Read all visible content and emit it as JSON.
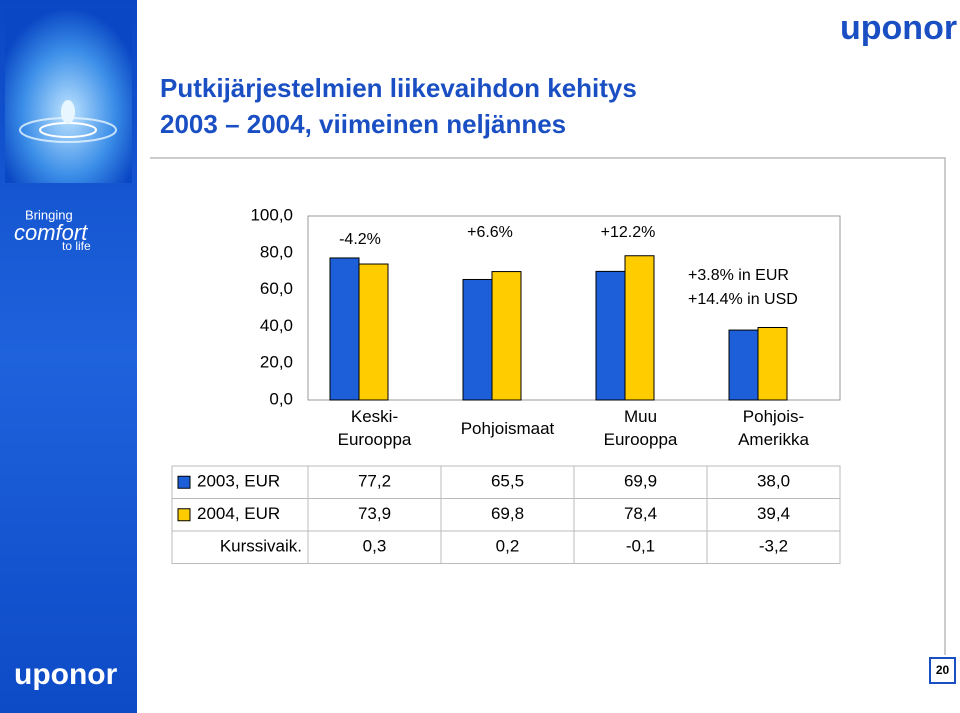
{
  "slide": {
    "title": [
      "Putkijärjestelmien liikevaihdon kehitys",
      "2003 – 2004, viimeinen neljännes"
    ],
    "logo": "uponor",
    "tagline": [
      "Bringing",
      "comfort",
      "to life"
    ],
    "page_number": "20"
  },
  "chart_data": {
    "type": "bar",
    "categories": [
      "Keski-\nEurooppa",
      "Pohjoismaat",
      "Muu\nEurooppa",
      "Pohjois-\nAmerikka"
    ],
    "series": [
      {
        "name": "2003, EUR",
        "color": "#1c5fd8",
        "values": [
          77.2,
          65.5,
          69.9,
          38.0
        ],
        "value_labels": [
          "77,2",
          "65,5",
          "69,9",
          "38,0"
        ]
      },
      {
        "name": "2004, EUR",
        "color": "#ffcc00",
        "values": [
          73.9,
          69.8,
          78.4,
          39.4
        ],
        "value_labels": [
          "73,9",
          "69,8",
          "78,4",
          "39,4"
        ]
      }
    ],
    "table_rows": [
      {
        "name": "Kurssivaik.",
        "values": [
          0.3,
          0.2,
          -0.1,
          -3.2
        ],
        "value_labels": [
          "0,3",
          "0,2",
          "-0,1",
          "-3,2"
        ]
      }
    ],
    "annotations": [
      "-4.2%",
      "+6.6%",
      "+12.2%",
      "+3.8% in EUR",
      "+14.4% in USD"
    ],
    "ylim": [
      0,
      100
    ],
    "yticks": [
      {
        "value": 0,
        "label": "0,0"
      },
      {
        "value": 20,
        "label": "20,0"
      },
      {
        "value": 40,
        "label": "40,0"
      },
      {
        "value": 60,
        "label": "60,0"
      },
      {
        "value": 80,
        "label": "80,0"
      },
      {
        "value": 100,
        "label": "100,0"
      }
    ],
    "grid": false
  }
}
